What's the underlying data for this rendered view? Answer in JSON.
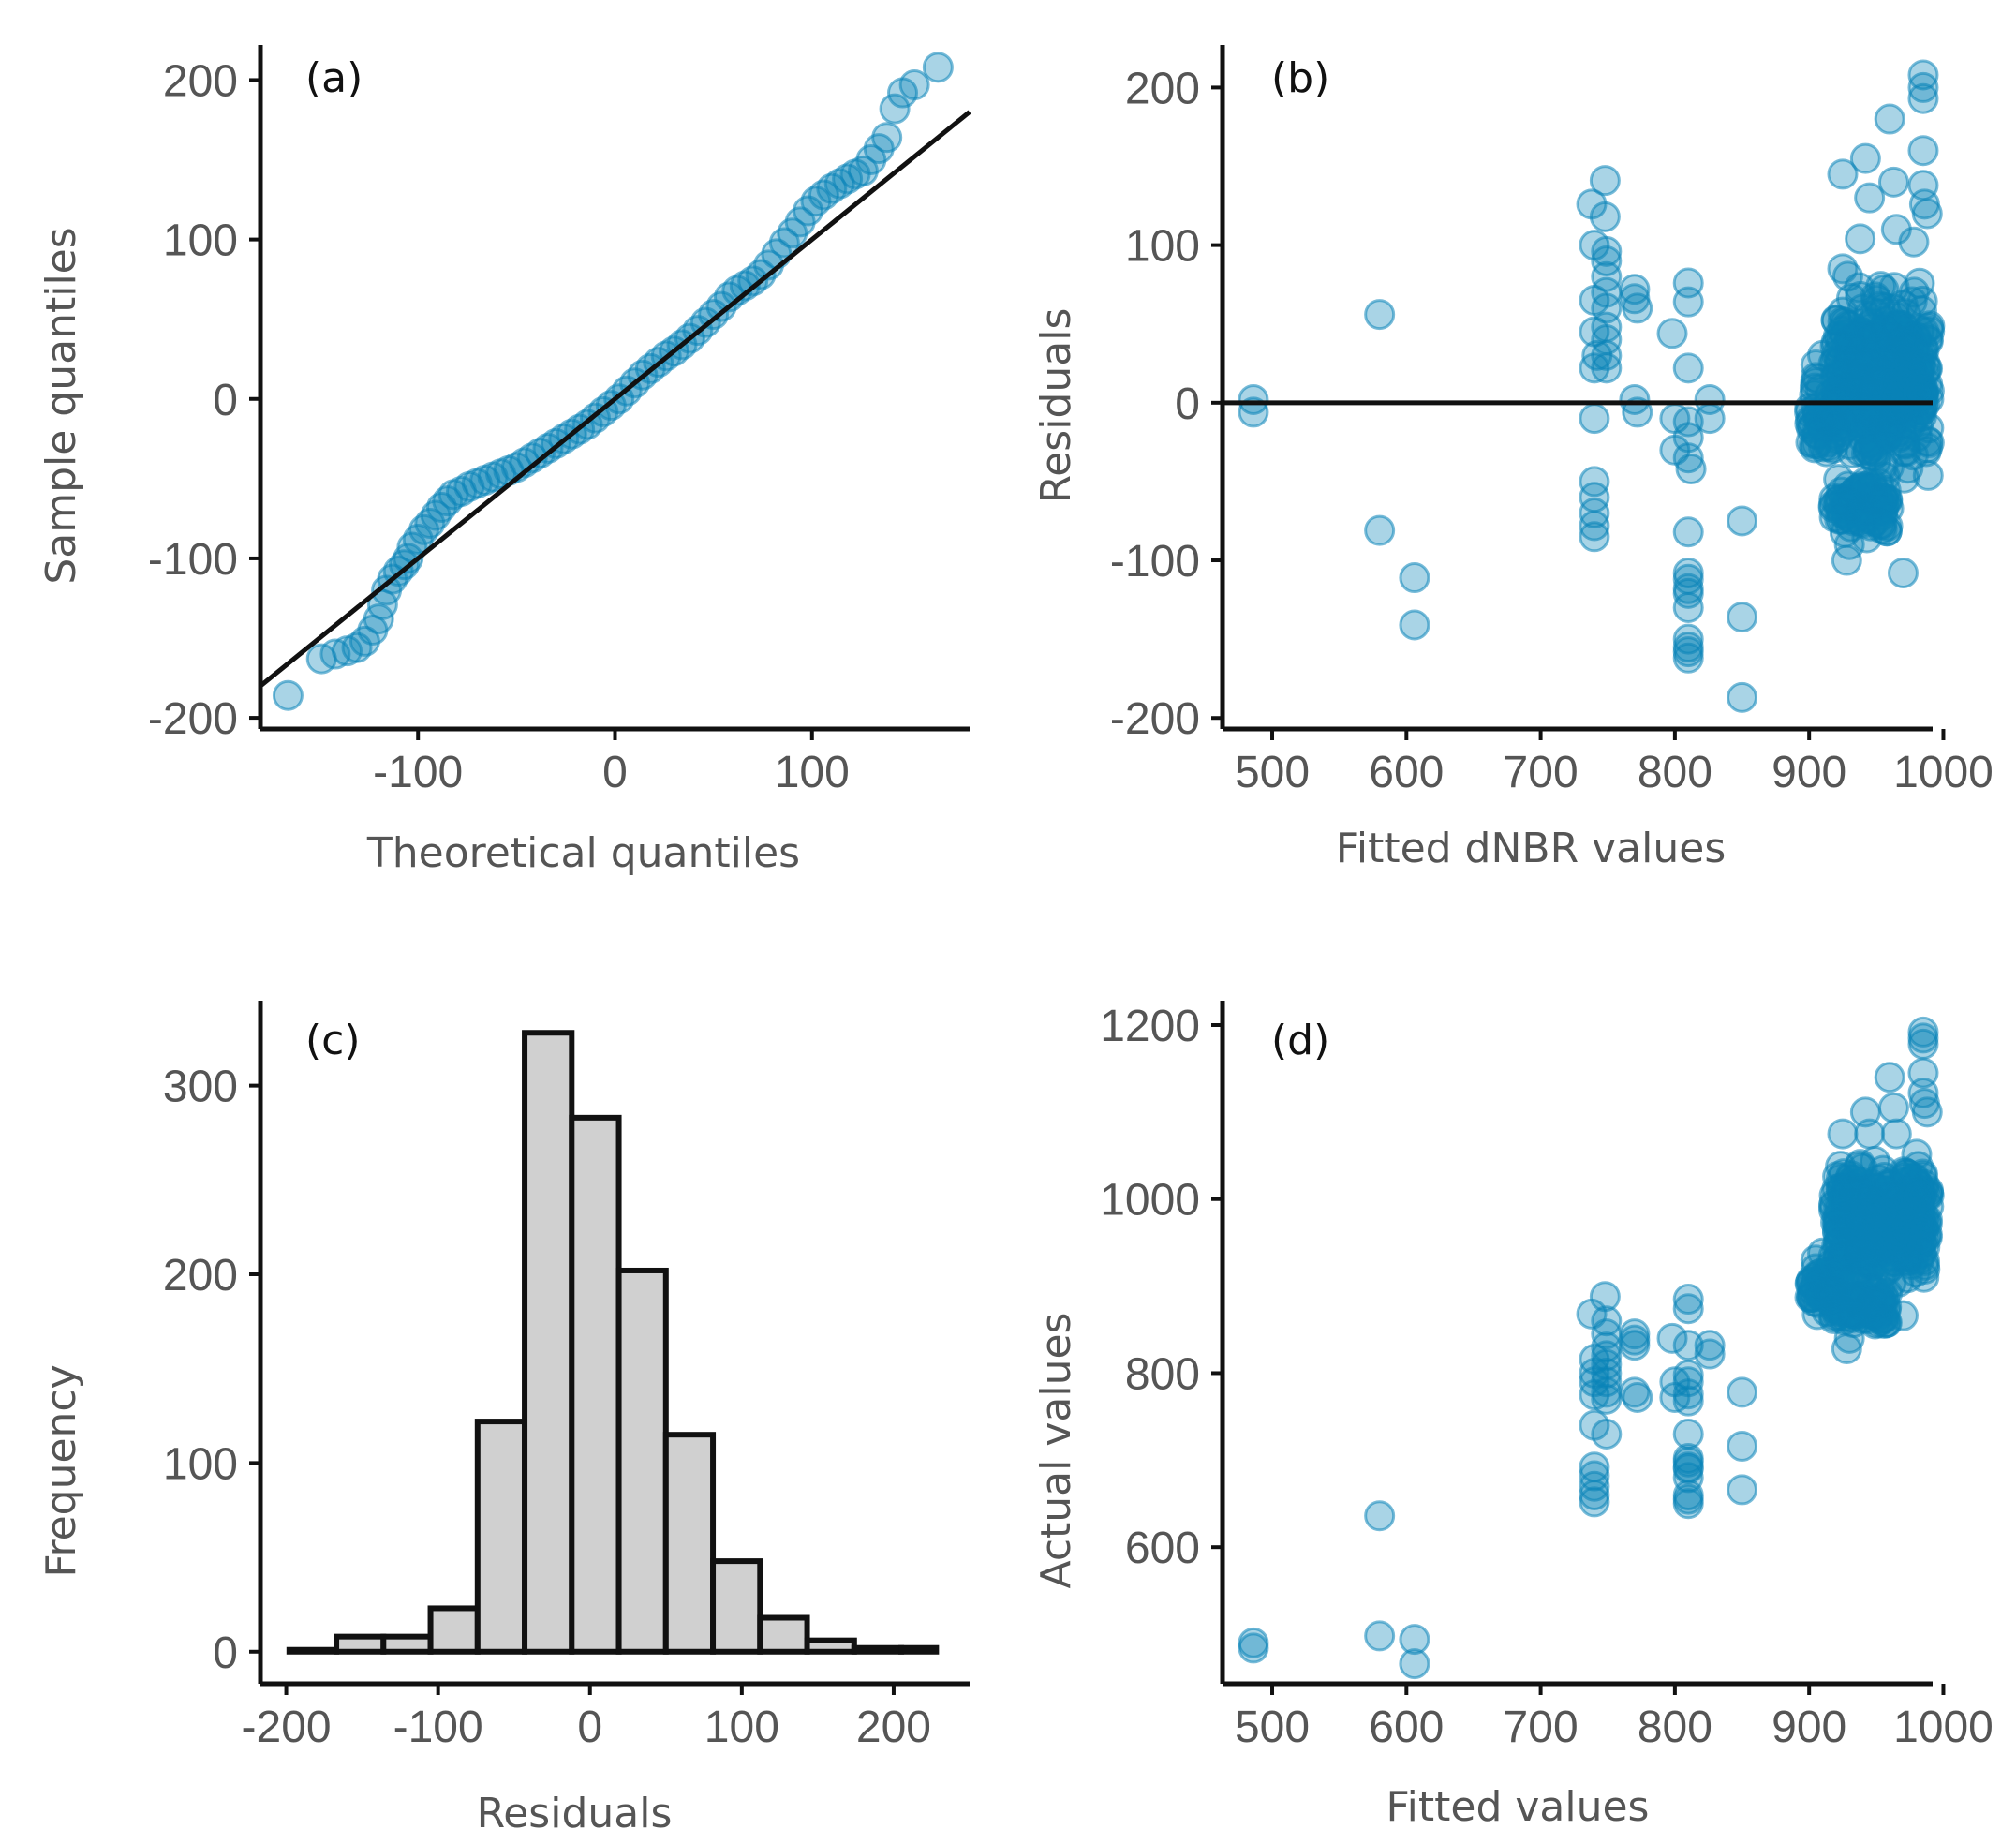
{
  "colors": {
    "point": "#0a84b8",
    "bar_fill": "#d0d0d0",
    "line": "#111111",
    "tick_text": "#555555"
  },
  "chart_data": [
    {
      "id": "a",
      "type": "scatter",
      "panel_label": "(a)",
      "xlabel": "Theoretical quantiles",
      "ylabel": "Sample quantiles",
      "xlim": [
        -180,
        180
      ],
      "ylim": [
        -207,
        222
      ],
      "xticks": [
        -100,
        0,
        100
      ],
      "yticks": [
        -200,
        -100,
        0,
        100,
        200
      ],
      "reference_line": {
        "x1": -180,
        "y1": -180,
        "x2": 180,
        "y2": 180
      },
      "points": [
        [
          -166,
          -186
        ],
        [
          -149,
          -163
        ],
        [
          -142,
          -160
        ],
        [
          -136,
          -158
        ],
        [
          -131,
          -156
        ],
        [
          -127,
          -152
        ],
        [
          -123,
          -145
        ],
        [
          -120,
          -138
        ],
        [
          -118,
          -129
        ],
        [
          -116,
          -120
        ],
        [
          -113,
          -113
        ],
        [
          -110,
          -108
        ],
        [
          -107,
          -104
        ],
        [
          -105,
          -100
        ],
        [
          -103,
          -93
        ],
        [
          -100,
          -88
        ],
        [
          -97,
          -82
        ],
        [
          -94,
          -78
        ],
        [
          -91,
          -73
        ],
        [
          -88,
          -68
        ],
        [
          -85,
          -64
        ],
        [
          -82,
          -60
        ],
        [
          -78,
          -58
        ],
        [
          -74,
          -55
        ],
        [
          -70,
          -53
        ],
        [
          -66,
          -51
        ],
        [
          -62,
          -49
        ],
        [
          -58,
          -47
        ],
        [
          -54,
          -45
        ],
        [
          -50,
          -43
        ],
        [
          -46,
          -40
        ],
        [
          -42,
          -37
        ],
        [
          -38,
          -34
        ],
        [
          -34,
          -31
        ],
        [
          -30,
          -28
        ],
        [
          -26,
          -25
        ],
        [
          -22,
          -22
        ],
        [
          -18,
          -19
        ],
        [
          -14,
          -16
        ],
        [
          -10,
          -12
        ],
        [
          -6,
          -8
        ],
        [
          -2,
          -4
        ],
        [
          2,
          0
        ],
        [
          6,
          5
        ],
        [
          10,
          10
        ],
        [
          14,
          15
        ],
        [
          18,
          19
        ],
        [
          22,
          23
        ],
        [
          26,
          27
        ],
        [
          30,
          30
        ],
        [
          34,
          34
        ],
        [
          38,
          38
        ],
        [
          42,
          43
        ],
        [
          46,
          48
        ],
        [
          50,
          53
        ],
        [
          54,
          58
        ],
        [
          58,
          64
        ],
        [
          62,
          68
        ],
        [
          66,
          71
        ],
        [
          70,
          74
        ],
        [
          74,
          78
        ],
        [
          78,
          84
        ],
        [
          82,
          91
        ],
        [
          86,
          98
        ],
        [
          90,
          104
        ],
        [
          94,
          111
        ],
        [
          98,
          118
        ],
        [
          102,
          124
        ],
        [
          106,
          128
        ],
        [
          110,
          132
        ],
        [
          114,
          135
        ],
        [
          118,
          138
        ],
        [
          122,
          141
        ],
        [
          126,
          143
        ],
        [
          130,
          150
        ],
        [
          134,
          157
        ],
        [
          138,
          164
        ],
        [
          142,
          182
        ],
        [
          146,
          192
        ],
        [
          152,
          197
        ],
        [
          164,
          208
        ]
      ]
    },
    {
      "id": "b",
      "type": "scatter",
      "panel_label": "(b)",
      "xlabel": "Fitted dNBR values",
      "ylabel": "Residuals",
      "xlim": [
        463,
        992
      ],
      "ylim": [
        -207,
        227
      ],
      "xticks": [
        500,
        600,
        700,
        800,
        900,
        1000
      ],
      "yticks": [
        -200,
        -100,
        0,
        100,
        200
      ],
      "reference_line": {
        "x1": 463,
        "y1": 0,
        "x2": 1005,
        "y2": 0
      },
      "points": [
        [
          486,
          2
        ],
        [
          486,
          -6
        ],
        [
          580,
          56
        ],
        [
          580,
          -81
        ],
        [
          606,
          -111
        ],
        [
          606,
          -141
        ],
        [
          738,
          126
        ],
        [
          740,
          100
        ],
        [
          740,
          65
        ],
        [
          740,
          45
        ],
        [
          742,
          30
        ],
        [
          740,
          22
        ],
        [
          740,
          -10
        ],
        [
          740,
          -50
        ],
        [
          740,
          -60
        ],
        [
          740,
          -70
        ],
        [
          740,
          -78
        ],
        [
          740,
          -85
        ],
        [
          748,
          141
        ],
        [
          748,
          118
        ],
        [
          749,
          96
        ],
        [
          749,
          90
        ],
        [
          749,
          80
        ],
        [
          749,
          70
        ],
        [
          749,
          60
        ],
        [
          749,
          48
        ],
        [
          749,
          40
        ],
        [
          749,
          30
        ],
        [
          749,
          22
        ],
        [
          770,
          72
        ],
        [
          770,
          66
        ],
        [
          772,
          60
        ],
        [
          770,
          2
        ],
        [
          772,
          -6
        ],
        [
          798,
          44
        ],
        [
          800,
          -10
        ],
        [
          800,
          -30
        ],
        [
          810,
          76
        ],
        [
          810,
          64
        ],
        [
          810,
          22
        ],
        [
          810,
          -12
        ],
        [
          810,
          -22
        ],
        [
          810,
          -35
        ],
        [
          812,
          -42
        ],
        [
          810,
          -82
        ],
        [
          810,
          -108
        ],
        [
          810,
          -112
        ],
        [
          810,
          -118
        ],
        [
          810,
          -121
        ],
        [
          810,
          -130
        ],
        [
          810,
          -150
        ],
        [
          810,
          -155
        ],
        [
          810,
          -158
        ],
        [
          810,
          -162
        ],
        [
          826,
          2
        ],
        [
          826,
          -10
        ],
        [
          850,
          -75
        ],
        [
          850,
          -136
        ],
        [
          850,
          -187
        ],
        [
          905,
          24
        ],
        [
          905,
          16
        ],
        [
          910,
          30
        ],
        [
          912,
          -8
        ],
        [
          915,
          -25
        ],
        [
          925,
          145
        ],
        [
          925,
          85
        ],
        [
          928,
          -100
        ],
        [
          930,
          -90
        ],
        [
          933,
          -75
        ],
        [
          938,
          104
        ],
        [
          942,
          155
        ],
        [
          945,
          130
        ],
        [
          950,
          -5
        ],
        [
          955,
          -40
        ],
        [
          960,
          180
        ],
        [
          963,
          140
        ],
        [
          965,
          110
        ],
        [
          970,
          -108
        ],
        [
          978,
          102
        ],
        [
          985,
          208
        ],
        [
          985,
          200
        ],
        [
          985,
          193
        ],
        [
          985,
          160
        ],
        [
          985,
          138
        ],
        [
          986,
          126
        ],
        [
          988,
          120
        ]
      ],
      "dense_bands": [
        {
          "x": [
            918,
            990
          ],
          "y": [
            -55,
            85
          ],
          "n": 420
        },
        {
          "x": [
            918,
            960
          ],
          "y": [
            -90,
            -40
          ],
          "n": 80
        },
        {
          "x": [
            900,
            920
          ],
          "y": [
            -50,
            25
          ],
          "n": 40
        }
      ]
    },
    {
      "id": "c",
      "type": "bar",
      "panel_label": "(c)",
      "xlabel": "Residuals",
      "ylabel": "Frequency",
      "xlim": [
        -217,
        250
      ],
      "ylim": [
        -17,
        345
      ],
      "xticks": [
        -200,
        -100,
        0,
        100,
        200
      ],
      "yticks": [
        0,
        100,
        200,
        300
      ],
      "bins": [
        {
          "x0": -198,
          "x1": -167,
          "value": 1
        },
        {
          "x0": -167,
          "x1": -136,
          "value": 8
        },
        {
          "x0": -136,
          "x1": -105,
          "value": 8
        },
        {
          "x0": -105,
          "x1": -74,
          "value": 23
        },
        {
          "x0": -74,
          "x1": -43,
          "value": 122
        },
        {
          "x0": -43,
          "x1": -12,
          "value": 328
        },
        {
          "x0": -12,
          "x1": 19,
          "value": 283
        },
        {
          "x0": 19,
          "x1": 50,
          "value": 202
        },
        {
          "x0": 50,
          "x1": 81,
          "value": 115
        },
        {
          "x0": 81,
          "x1": 112,
          "value": 48
        },
        {
          "x0": 112,
          "x1": 143,
          "value": 18
        },
        {
          "x0": 143,
          "x1": 174,
          "value": 6
        },
        {
          "x0": 174,
          "x1": 205,
          "value": 2
        },
        {
          "x0": 205,
          "x1": 228,
          "value": 2
        }
      ]
    },
    {
      "id": "d",
      "type": "scatter",
      "panel_label": "(d)",
      "xlabel": "Fitted values",
      "ylabel": "Actual values",
      "xlim": [
        463,
        992
      ],
      "ylim": [
        443,
        1228
      ],
      "xticks": [
        500,
        600,
        700,
        800,
        900,
        1000
      ],
      "yticks": [
        600,
        800,
        1000,
        1200
      ],
      "points": [
        [
          486,
          490
        ],
        [
          486,
          484
        ],
        [
          580,
          498
        ],
        [
          580,
          636
        ],
        [
          606,
          494
        ],
        [
          606,
          466
        ],
        [
          738,
          868
        ],
        [
          740,
          816
        ],
        [
          740,
          800
        ],
        [
          740,
          790
        ],
        [
          740,
          775
        ],
        [
          740,
          740
        ],
        [
          740,
          692
        ],
        [
          740,
          682
        ],
        [
          740,
          670
        ],
        [
          740,
          660
        ],
        [
          740,
          652
        ],
        [
          748,
          888
        ],
        [
          749,
          860
        ],
        [
          749,
          845
        ],
        [
          749,
          830
        ],
        [
          749,
          820
        ],
        [
          749,
          810
        ],
        [
          749,
          800
        ],
        [
          749,
          790
        ],
        [
          749,
          778
        ],
        [
          749,
          770
        ],
        [
          749,
          730
        ],
        [
          770,
          845
        ],
        [
          770,
          838
        ],
        [
          770,
          832
        ],
        [
          770,
          778
        ],
        [
          772,
          772
        ],
        [
          798,
          840
        ],
        [
          800,
          790
        ],
        [
          800,
          772
        ],
        [
          810,
          885
        ],
        [
          810,
          874
        ],
        [
          810,
          832
        ],
        [
          810,
          798
        ],
        [
          810,
          790
        ],
        [
          810,
          776
        ],
        [
          810,
          768
        ],
        [
          810,
          730
        ],
        [
          810,
          702
        ],
        [
          810,
          698
        ],
        [
          810,
          692
        ],
        [
          810,
          690
        ],
        [
          810,
          680
        ],
        [
          810,
          660
        ],
        [
          810,
          655
        ],
        [
          810,
          650
        ],
        [
          826,
          832
        ],
        [
          826,
          822
        ],
        [
          850,
          778
        ],
        [
          850,
          716
        ],
        [
          850,
          666
        ],
        [
          905,
          930
        ],
        [
          905,
          920
        ],
        [
          910,
          938
        ],
        [
          912,
          902
        ],
        [
          915,
          885
        ],
        [
          925,
          1075
        ],
        [
          925,
          1010
        ],
        [
          928,
          828
        ],
        [
          930,
          840
        ],
        [
          933,
          858
        ],
        [
          938,
          1040
        ],
        [
          942,
          1100
        ],
        [
          945,
          1075
        ],
        [
          950,
          945
        ],
        [
          955,
          915
        ],
        [
          960,
          1140
        ],
        [
          963,
          1105
        ],
        [
          965,
          1075
        ],
        [
          970,
          866
        ],
        [
          985,
          1192
        ],
        [
          985,
          1185
        ],
        [
          985,
          1178
        ],
        [
          985,
          1145
        ],
        [
          985,
          1122
        ],
        [
          986,
          1110
        ],
        [
          988,
          1100
        ]
      ],
      "dense_bands": [
        {
          "x": [
            918,
            990
          ],
          "y": [
            880,
            1060
          ],
          "n": 420
        },
        {
          "x": [
            918,
            960
          ],
          "y": [
            845,
            905
          ],
          "n": 80
        },
        {
          "x": [
            900,
            920
          ],
          "y": [
            860,
            935
          ],
          "n": 40
        }
      ]
    }
  ]
}
